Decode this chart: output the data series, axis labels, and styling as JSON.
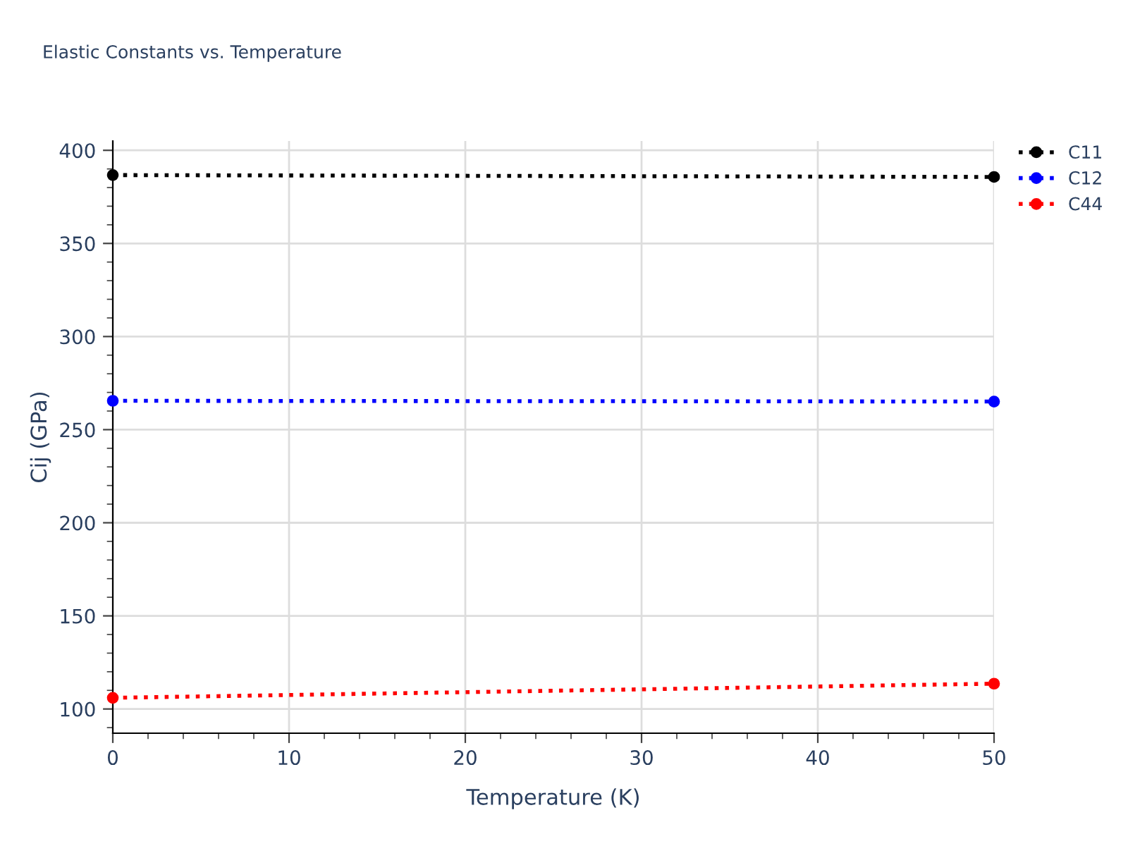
{
  "chart_data": {
    "type": "line",
    "title": "Elastic Constants vs. Temperature",
    "xlabel": "Temperature (K)",
    "ylabel": "Cij (GPa)",
    "x": [
      0,
      50
    ],
    "series": [
      {
        "name": "C11",
        "color": "#000000",
        "values": [
          386.7,
          385.7
        ]
      },
      {
        "name": "C12",
        "color": "#0000ff",
        "values": [
          265.5,
          265.1
        ]
      },
      {
        "name": "C44",
        "color": "#ff0000",
        "values": [
          106.0,
          113.6
        ]
      }
    ],
    "xlim": [
      0,
      50
    ],
    "xticks": [
      0,
      10,
      20,
      30,
      40,
      50
    ],
    "ylim": [
      87,
      405
    ],
    "yticks": [
      100,
      150,
      200,
      250,
      300,
      350,
      400
    ],
    "grid": true,
    "legend": "top right",
    "marker": "circle",
    "line_style": "dotted"
  }
}
